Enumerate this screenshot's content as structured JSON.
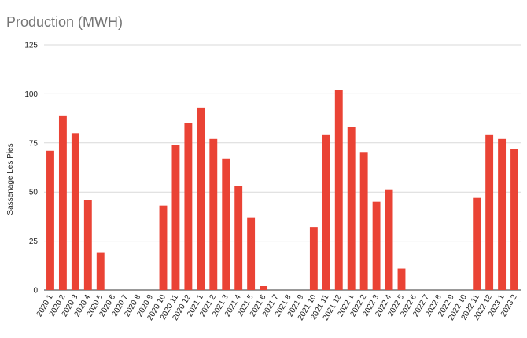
{
  "chart_data": {
    "type": "bar",
    "title": "Production (MWH)",
    "xlabel": "",
    "ylabel": "Sassenage Les Pies",
    "ylim": [
      0,
      125
    ],
    "yticks": [
      0,
      25,
      50,
      75,
      100,
      125
    ],
    "grid": true,
    "legend": "none",
    "bar_color": "#ea4335",
    "categories": [
      "2020 1",
      "2020 2",
      "2020 3",
      "2020 4",
      "2020 5",
      "2020 6",
      "2020 7",
      "2020 8",
      "2020 9",
      "2020 10",
      "2020 11",
      "2020 12",
      "2021 1",
      "2021 2",
      "2021 3",
      "2021 4",
      "2021 5",
      "2021 6",
      "2021 7",
      "2021 8",
      "2021 9",
      "2021 10",
      "2021 11",
      "2021 12",
      "2022 1",
      "2022 2",
      "2022 3",
      "2022 4",
      "2022 5",
      "2022 6",
      "2022 7",
      "2022 8",
      "2022 9",
      "2022 10",
      "2022 11",
      "2022 12",
      "2023 1",
      "2023 2"
    ],
    "values": [
      71,
      89,
      80,
      46,
      19,
      0,
      0,
      0,
      0,
      43,
      74,
      85,
      93,
      77,
      67,
      53,
      37,
      2,
      0,
      0,
      0,
      32,
      79,
      102,
      83,
      70,
      45,
      51,
      11,
      0,
      0,
      0,
      0,
      0,
      47,
      79,
      77,
      72
    ]
  }
}
